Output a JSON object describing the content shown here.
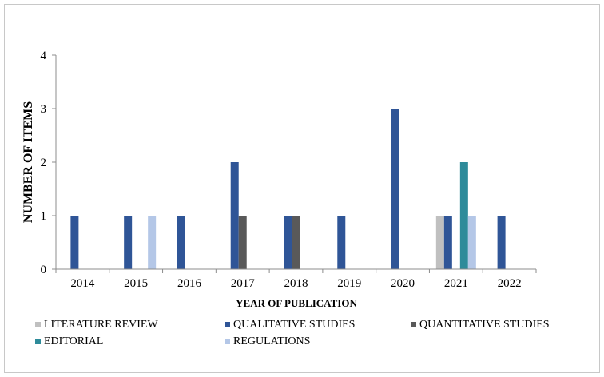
{
  "chart_data": {
    "type": "bar",
    "title": "",
    "xlabel": "YEAR OF PUBLICATION",
    "ylabel": "NUMBER OF ITEMS",
    "ylim": [
      0,
      4
    ],
    "yticks": [
      "0",
      "1",
      "2",
      "3",
      "4"
    ],
    "grid": false,
    "legend_position": "bottom",
    "categories": [
      "2014",
      "2015",
      "2016",
      "2017",
      "2018",
      "2019",
      "2020",
      "2021",
      "2022"
    ],
    "series": [
      {
        "name": "LITERATURE REVIEW",
        "color": "#c0c0c0",
        "values": [
          0,
          0,
          0,
          0,
          0,
          0,
          0,
          1,
          0
        ]
      },
      {
        "name": "QUALITATIVE STUDIES",
        "color": "#2f5597",
        "values": [
          1,
          1,
          1,
          2,
          1,
          1,
          3,
          1,
          1
        ]
      },
      {
        "name": "QUANTITATIVE STUDIES",
        "color": "#595959",
        "values": [
          0,
          0,
          0,
          1,
          1,
          0,
          0,
          0,
          0
        ]
      },
      {
        "name": "EDITORIAL",
        "color": "#2e8b9a",
        "values": [
          0,
          0,
          0,
          0,
          0,
          0,
          0,
          2,
          0
        ]
      },
      {
        "name": "REGULATIONS",
        "color": "#b4c7e7",
        "values": [
          0,
          1,
          0,
          0,
          0,
          0,
          0,
          1,
          0
        ]
      }
    ]
  }
}
